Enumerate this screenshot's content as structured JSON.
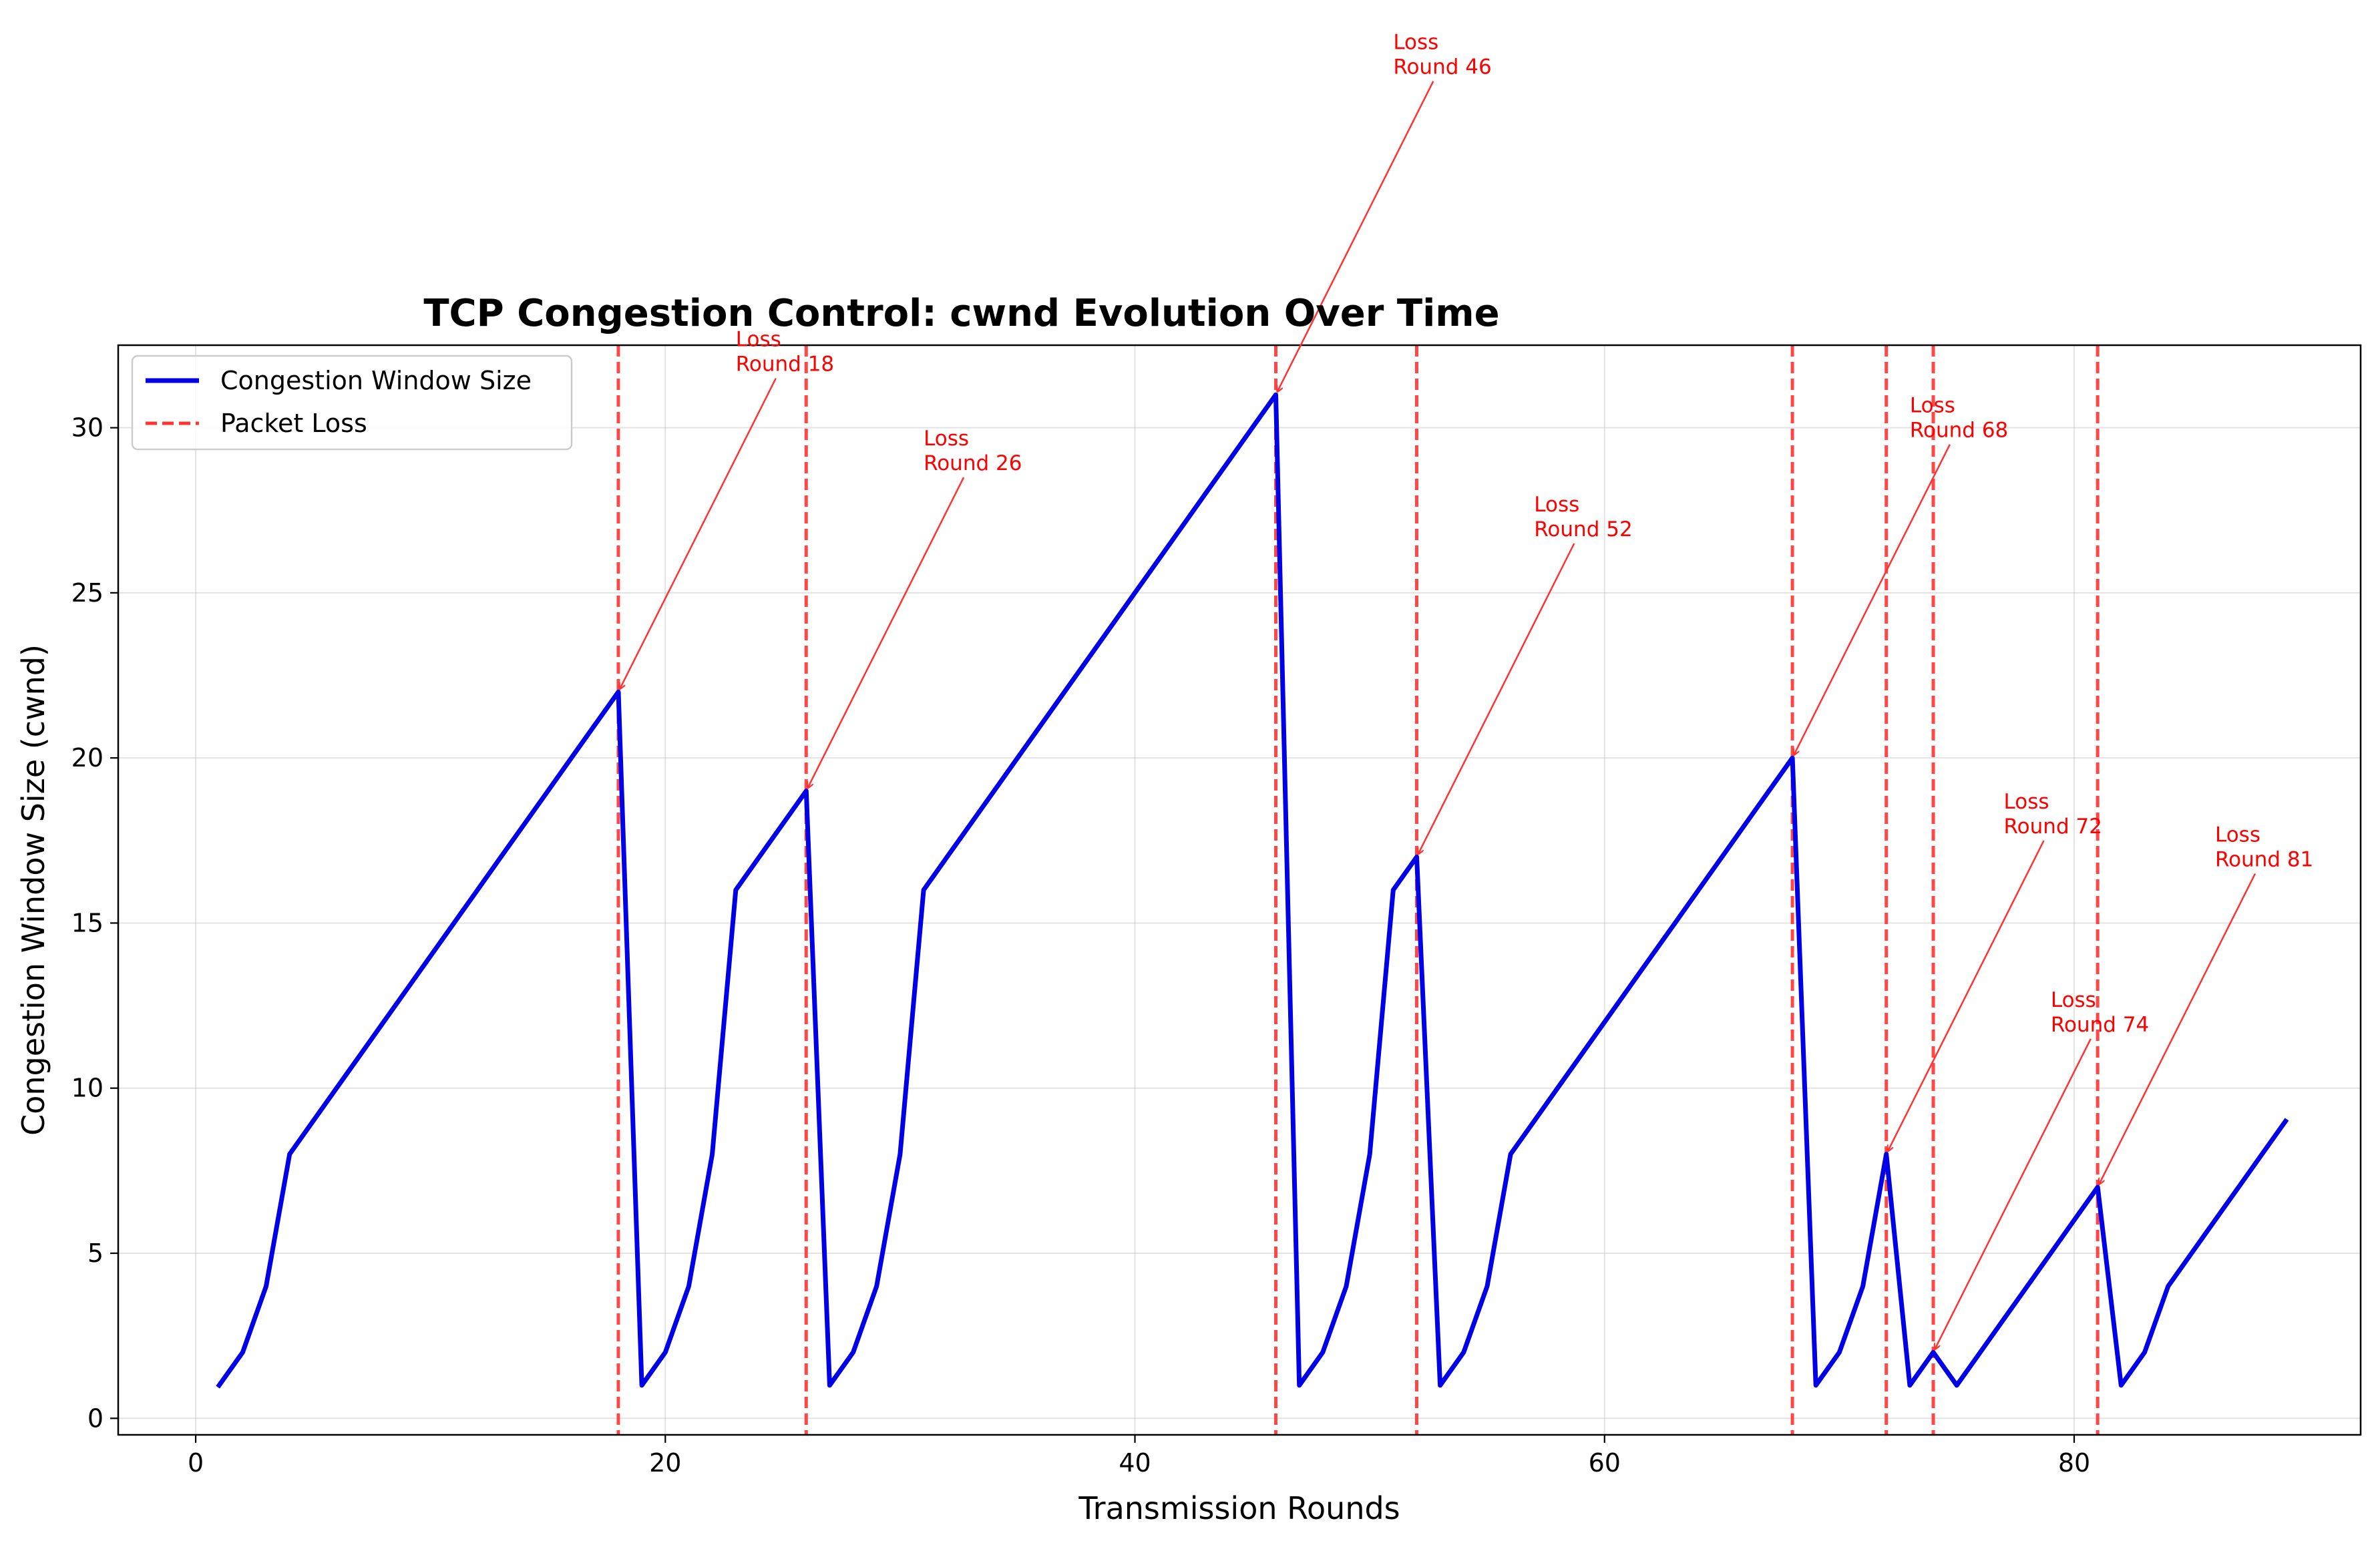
{
  "chart_data": {
    "type": "line",
    "title": "TCP Congestion Control: cwnd Evolution Over Time",
    "xlabel": "Transmission Rounds",
    "ylabel": "Congestion Window Size (cwnd)",
    "xlim": [
      -3.3,
      92.2
    ],
    "ylim": [
      -0.5,
      32.5
    ],
    "xticks": [
      0,
      20,
      40,
      60,
      80
    ],
    "yticks": [
      0,
      5,
      10,
      15,
      20,
      25,
      30
    ],
    "grid": true,
    "legend_position": "upper-left",
    "legend": [
      {
        "label": "Congestion Window Size",
        "style": "solid",
        "color": "#0000e6"
      },
      {
        "label": "Packet Loss",
        "style": "dashed",
        "color": "#ff3333"
      }
    ],
    "series": [
      {
        "name": "Congestion Window Size",
        "color": "#0000e6",
        "x": [
          1,
          2,
          3,
          4,
          5,
          6,
          7,
          8,
          9,
          10,
          11,
          12,
          13,
          14,
          15,
          16,
          17,
          18,
          19,
          20,
          21,
          22,
          23,
          24,
          25,
          26,
          27,
          28,
          29,
          30,
          31,
          32,
          33,
          34,
          35,
          36,
          37,
          38,
          39,
          40,
          41,
          42,
          43,
          44,
          45,
          46,
          47,
          48,
          49,
          50,
          51,
          52,
          53,
          54,
          55,
          56,
          57,
          58,
          59,
          60,
          61,
          62,
          63,
          64,
          65,
          66,
          67,
          68,
          69,
          70,
          71,
          72,
          73,
          74,
          75,
          76,
          77,
          78,
          79,
          80,
          81,
          82,
          83,
          84,
          85,
          86,
          87,
          88,
          89
        ],
        "y": [
          1,
          2,
          4,
          8,
          9,
          10,
          11,
          12,
          13,
          14,
          15,
          16,
          17,
          18,
          19,
          20,
          21,
          22,
          1,
          2,
          4,
          8,
          16,
          17,
          18,
          19,
          1,
          2,
          4,
          8,
          16,
          17,
          18,
          19,
          20,
          21,
          22,
          23,
          24,
          25,
          26,
          27,
          28,
          29,
          30,
          31,
          1,
          2,
          4,
          8,
          16,
          17,
          1,
          2,
          4,
          8,
          9,
          10,
          11,
          12,
          13,
          14,
          15,
          16,
          17,
          18,
          19,
          20,
          1,
          2,
          4,
          8,
          1,
          2,
          1,
          2,
          3,
          4,
          5,
          6,
          7,
          1,
          2,
          4,
          5,
          6,
          7,
          8,
          9
        ]
      }
    ],
    "loss_rounds": [
      18,
      26,
      46,
      52,
      68,
      72,
      74,
      81
    ],
    "loss_color": "#ff3333",
    "annotations": [
      {
        "round": 18,
        "cwnd": 22,
        "line1": "Loss",
        "line2": "Round 18",
        "text_x": 23,
        "text_y": 32
      },
      {
        "round": 26,
        "cwnd": 19,
        "line1": "Loss",
        "line2": "Round 26",
        "text_x": 31,
        "text_y": 29
      },
      {
        "round": 46,
        "cwnd": 31,
        "line1": "Loss",
        "line2": "Round 46",
        "text_x": 51,
        "text_y": 41
      },
      {
        "round": 52,
        "cwnd": 17,
        "line1": "Loss",
        "line2": "Round 52",
        "text_x": 57,
        "text_y": 27
      },
      {
        "round": 68,
        "cwnd": 20,
        "line1": "Loss",
        "line2": "Round 68",
        "text_x": 73,
        "text_y": 30
      },
      {
        "round": 72,
        "cwnd": 8,
        "line1": "Loss",
        "line2": "Round 72",
        "text_x": 77,
        "text_y": 18
      },
      {
        "round": 74,
        "cwnd": 2,
        "line1": "Loss",
        "line2": "Round 74",
        "text_x": 79,
        "text_y": 12
      },
      {
        "round": 81,
        "cwnd": 7,
        "line1": "Loss",
        "line2": "Round 81",
        "text_x": 86,
        "text_y": 17
      }
    ]
  }
}
